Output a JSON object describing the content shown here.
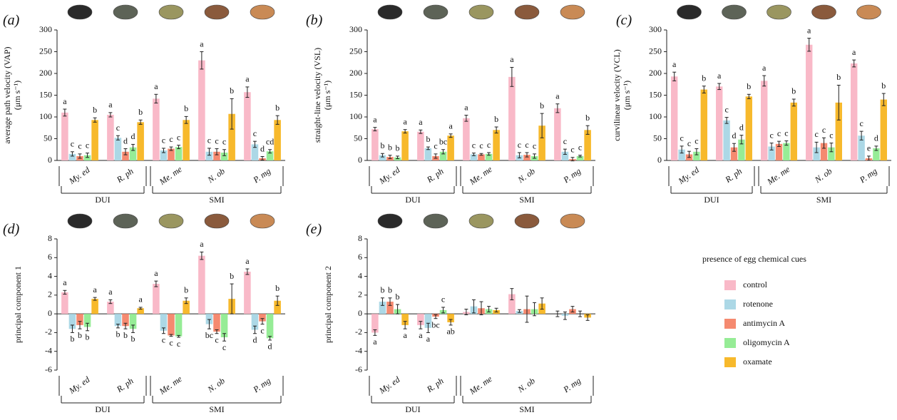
{
  "legend": {
    "title": "presence of egg chemical cues",
    "series": [
      {
        "name": "control",
        "color": "#f9b9c8"
      },
      {
        "name": "rotenone",
        "color": "#acd8e6"
      },
      {
        "name": "antimycin A",
        "color": "#f58a70"
      },
      {
        "name": "oligomycin A",
        "color": "#96ec96"
      },
      {
        "name": "oxamate",
        "color": "#f7b92c"
      }
    ]
  },
  "chart_data": [
    {
      "type": "bar",
      "panel_label": "(a)",
      "y_label": [
        "average path velocity (VAP)",
        "(μm s⁻¹)"
      ],
      "groups": [
        {
          "label": "DUI",
          "categories": [
            "My. ed",
            "R. ph"
          ]
        },
        {
          "label": "SMI",
          "categories": [
            "Me. me",
            "N. ob",
            "P. mg"
          ]
        }
      ],
      "ylim": [
        0,
        300
      ],
      "yticks": [
        0,
        50,
        100,
        150,
        200,
        250,
        300
      ],
      "series": [
        {
          "values": [
            110,
            105,
            142,
            230,
            157
          ],
          "errors": [
            8,
            5,
            10,
            20,
            12
          ],
          "letters": [
            "a",
            "a",
            "a",
            "a",
            "a"
          ]
        },
        {
          "values": [
            15,
            52,
            23,
            20,
            37
          ],
          "errors": [
            5,
            5,
            5,
            8,
            7
          ],
          "letters": [
            "c",
            "c",
            "c",
            "c",
            "c"
          ]
        },
        {
          "values": [
            10,
            20,
            27,
            20,
            5
          ],
          "errors": [
            5,
            7,
            4,
            7,
            4
          ],
          "letters": [
            "c",
            "d",
            "c",
            "c",
            "d"
          ]
        },
        {
          "values": [
            12,
            30,
            31,
            18,
            21
          ],
          "errors": [
            5,
            7,
            4,
            7,
            4
          ],
          "letters": [
            "c",
            "d",
            "c",
            "c",
            "cd"
          ]
        },
        {
          "values": [
            93,
            88,
            93,
            107,
            93
          ],
          "errors": [
            5,
            5,
            8,
            35,
            10
          ],
          "letters": [
            "b",
            "b",
            "b",
            "b",
            "b"
          ]
        }
      ]
    },
    {
      "type": "bar",
      "panel_label": "(b)",
      "y_label": [
        "straight-line velocity (VSL)",
        "(μm s⁻¹)"
      ],
      "groups": [
        {
          "label": "DUI",
          "categories": [
            "My. ed",
            "R. ph"
          ]
        },
        {
          "label": "SMI",
          "categories": [
            "Me. me",
            "N. ob",
            "P. mg"
          ]
        }
      ],
      "ylim": [
        0,
        300
      ],
      "yticks": [
        0,
        50,
        100,
        150,
        200,
        250,
        300
      ],
      "series": [
        {
          "values": [
            72,
            66,
            97,
            192,
            120
          ],
          "errors": [
            4,
            4,
            7,
            22,
            10
          ],
          "letters": [
            "a",
            "a",
            "a",
            "a",
            "a"
          ]
        },
        {
          "values": [
            12,
            28,
            14,
            12,
            20
          ],
          "errors": [
            4,
            3,
            3,
            6,
            6
          ],
          "letters": [
            "b",
            "b",
            "c",
            "c",
            "c"
          ]
        },
        {
          "values": [
            8,
            10,
            14,
            13,
            3
          ],
          "errors": [
            4,
            5,
            2,
            5,
            4
          ],
          "letters": [
            "b",
            "c",
            "c",
            "c",
            "c"
          ]
        },
        {
          "values": [
            7,
            20,
            15,
            10,
            10
          ],
          "errors": [
            3,
            5,
            3,
            5,
            2
          ],
          "letters": [
            "b",
            "bc",
            "c",
            "c",
            "c"
          ]
        },
        {
          "values": [
            67,
            57,
            70,
            80,
            70
          ],
          "errors": [
            4,
            4,
            7,
            28,
            10
          ],
          "letters": [
            "a",
            "a",
            "b",
            "b",
            "b"
          ]
        }
      ]
    },
    {
      "type": "bar",
      "panel_label": "(c)",
      "y_label": [
        "curvilinear velocity (VCL)",
        "(μm s⁻¹)"
      ],
      "groups": [
        {
          "label": "DUI",
          "categories": [
            "My. ed",
            "R. ph"
          ]
        },
        {
          "label": "SMI",
          "categories": [
            "Me. me",
            "N. ob",
            "P. mg"
          ]
        }
      ],
      "ylim": [
        0,
        300
      ],
      "yticks": [
        0,
        50,
        100,
        150,
        200,
        250,
        300
      ],
      "series": [
        {
          "values": [
            193,
            170,
            183,
            266,
            223
          ],
          "errors": [
            10,
            7,
            12,
            15,
            8
          ],
          "letters": [
            "a",
            "a",
            "a",
            "a",
            "a"
          ]
        },
        {
          "values": [
            25,
            92,
            32,
            30,
            57
          ],
          "errors": [
            8,
            7,
            8,
            12,
            10
          ],
          "letters": [
            "c",
            "c",
            "c",
            "c",
            "c"
          ]
        },
        {
          "values": [
            14,
            30,
            38,
            40,
            5
          ],
          "errors": [
            7,
            9,
            6,
            12,
            5
          ],
          "letters": [
            "c",
            "d",
            "c",
            "c",
            "e"
          ]
        },
        {
          "values": [
            20,
            48,
            40,
            30,
            28
          ],
          "errors": [
            7,
            10,
            5,
            10,
            5
          ],
          "letters": [
            "c",
            "d",
            "c",
            "c",
            "d"
          ]
        },
        {
          "values": [
            163,
            147,
            133,
            133,
            140
          ],
          "errors": [
            8,
            5,
            8,
            40,
            14
          ],
          "letters": [
            "b",
            "b",
            "b",
            "b",
            "b"
          ]
        }
      ]
    },
    {
      "type": "bar",
      "panel_label": "(d)",
      "y_label": [
        "principal component 1"
      ],
      "groups": [
        {
          "label": "DUI",
          "categories": [
            "My. ed",
            "R. ph"
          ]
        },
        {
          "label": "SMI",
          "categories": [
            "Me. me",
            "N. ob",
            "P. mg"
          ]
        }
      ],
      "ylim": [
        -6,
        8
      ],
      "yticks": [
        -6,
        -4,
        -2,
        0,
        2,
        4,
        6,
        8
      ],
      "series": [
        {
          "values": [
            2.3,
            1.3,
            3.2,
            6.2,
            4.5
          ],
          "errors": [
            0.2,
            0.2,
            0.3,
            0.4,
            0.3
          ],
          "letters": [
            "a",
            "a",
            "a",
            "a",
            "a"
          ]
        },
        {
          "values": [
            -1.6,
            -1.3,
            -1.8,
            -1.1,
            -1.7
          ],
          "errors": [
            0.4,
            0.2,
            0.3,
            0.5,
            0.4
          ],
          "letters": [
            "b",
            "b",
            "c",
            "bc",
            "d"
          ]
        },
        {
          "values": [
            -1.2,
            -1.3,
            -2.3,
            -1.9,
            -0.8
          ],
          "errors": [
            0.4,
            0.3,
            0.1,
            0.2,
            0.3
          ],
          "letters": [
            "b",
            "b",
            "c",
            "c",
            "c"
          ]
        },
        {
          "values": [
            -1.4,
            -1.6,
            -2.4,
            -2.5,
            -2.6
          ],
          "errors": [
            0.4,
            0.4,
            0.1,
            0.4,
            0.2
          ],
          "letters": [
            "b",
            "b",
            "c",
            "c",
            "d"
          ]
        },
        {
          "values": [
            1.6,
            0.6,
            1.4,
            1.6,
            1.4
          ],
          "errors": [
            0.15,
            0.1,
            0.3,
            1.6,
            0.5
          ],
          "letters": [
            "a",
            "a",
            "b",
            "b",
            "b"
          ]
        }
      ]
    },
    {
      "type": "bar",
      "panel_label": "(e)",
      "y_label": [
        "principal component 2"
      ],
      "groups": [
        {
          "label": "DUI",
          "categories": [
            "My. ed",
            "R. ph"
          ]
        },
        {
          "label": "SMI",
          "categories": [
            "Me. me",
            "N. ob",
            "P. mg"
          ]
        }
      ],
      "ylim": [
        -6,
        8
      ],
      "yticks": [
        -6,
        -4,
        -2,
        0,
        2,
        4,
        6,
        8
      ],
      "series": [
        {
          "values": [
            -2.0,
            -1.2,
            0.2,
            2.1,
            0.0
          ],
          "errors": [
            0.3,
            0.4,
            0.3,
            0.6,
            0.3
          ],
          "letters": [
            "a",
            "a",
            null,
            null,
            null
          ]
        },
        {
          "values": [
            1.3,
            -1.5,
            0.8,
            0.3,
            -0.2
          ],
          "errors": [
            0.4,
            0.5,
            0.7,
            0.15,
            0.4
          ],
          "letters": [
            "b",
            "a",
            null,
            null,
            null
          ]
        },
        {
          "values": [
            1.3,
            -0.3,
            0.6,
            0.5,
            0.5
          ],
          "errors": [
            0.4,
            0.2,
            0.7,
            1.4,
            0.3
          ],
          "letters": [
            "b",
            "bc",
            null,
            null,
            null
          ]
        },
        {
          "values": [
            0.5,
            0.4,
            0.5,
            0.5,
            0.0
          ],
          "errors": [
            0.5,
            0.3,
            0.3,
            0.7,
            0.3
          ],
          "letters": [
            "b",
            "c",
            null,
            null,
            null
          ]
        },
        {
          "values": [
            -1.2,
            -0.9,
            0.4,
            1.1,
            -0.4
          ],
          "errors": [
            0.4,
            0.3,
            0.2,
            0.6,
            0.3
          ],
          "letters": [
            "a",
            "ab",
            null,
            null,
            null
          ]
        }
      ]
    }
  ]
}
